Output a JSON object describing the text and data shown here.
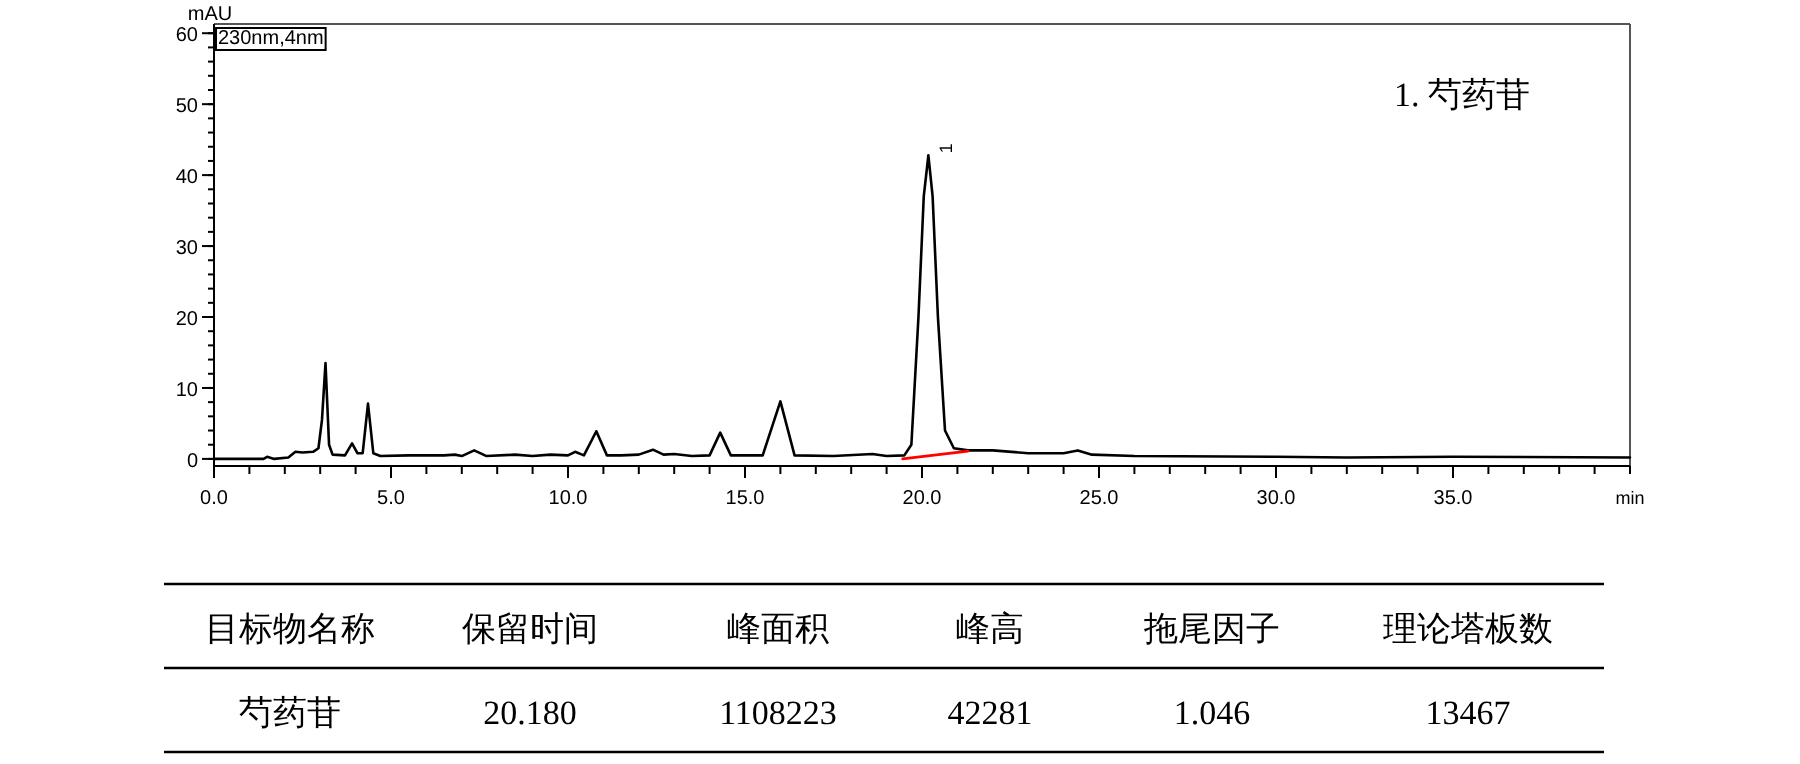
{
  "chart_data": {
    "type": "line",
    "xlabel": "min",
    "ylabel": "mAU",
    "xlim": [
      0,
      40
    ],
    "ylim": [
      -1,
      61.3
    ],
    "xticks": [
      {
        "value": 0,
        "label": "0.0"
      },
      {
        "value": 5,
        "label": "5.0"
      },
      {
        "value": 10,
        "label": "10.0"
      },
      {
        "value": 15,
        "label": "15.0"
      },
      {
        "value": 20,
        "label": "20.0"
      },
      {
        "value": 25,
        "label": "25.0"
      },
      {
        "value": 30,
        "label": "30.0"
      },
      {
        "value": 35,
        "label": "35.0"
      }
    ],
    "yticks": [
      0,
      10,
      20,
      30,
      40,
      50,
      60
    ],
    "series": [
      {
        "color": "#000000",
        "x": [
          0,
          1.4,
          1.5,
          1.7,
          2.1,
          2.3,
          2.5,
          2.8,
          2.95,
          3.05,
          3.15,
          3.25,
          3.35,
          3.7,
          3.9,
          4.05,
          4.2,
          4.35,
          4.5,
          4.7,
          5.5,
          6.5,
          6.8,
          7.0,
          7.35,
          7.7,
          8.5,
          9.0,
          9.5,
          10.0,
          10.2,
          10.45,
          10.8,
          11.1,
          11.5,
          12.0,
          12.4,
          12.7,
          13.0,
          13.5,
          14.0,
          14.3,
          14.6,
          15.5,
          16.0,
          16.4,
          17.5,
          18.6,
          19.0,
          19.5,
          19.7,
          19.9,
          20.05,
          20.18,
          20.3,
          20.45,
          20.65,
          20.9,
          21.3,
          22.0,
          23.0,
          24.0,
          24.4,
          24.8,
          26,
          30,
          32,
          35,
          40
        ],
        "values": [
          0,
          0,
          0.3,
          0,
          0.2,
          1.0,
          0.9,
          1.0,
          1.5,
          5.5,
          13.5,
          2,
          0.6,
          0.5,
          2.2,
          0.8,
          0.8,
          7.8,
          0.8,
          0.4,
          0.5,
          0.5,
          0.6,
          0.4,
          1.2,
          0.4,
          0.6,
          0.4,
          0.6,
          0.5,
          1.0,
          0.5,
          3.9,
          0.5,
          0.5,
          0.6,
          1.3,
          0.6,
          0.7,
          0.4,
          0.5,
          3.7,
          0.5,
          0.5,
          8.1,
          0.5,
          0.4,
          0.7,
          0.4,
          0.5,
          2,
          20,
          37,
          42.8,
          37,
          20,
          4,
          1.5,
          1.2,
          1.2,
          0.8,
          0.8,
          1.2,
          0.6,
          0.4,
          0.3,
          0.2,
          0.3,
          0.2
        ]
      },
      {
        "type": "line",
        "color": "#ff0000",
        "x": [
          19.45,
          21.3
        ],
        "values": [
          0,
          1.1
        ]
      }
    ],
    "annotations": [
      "230nm,4nm",
      {
        "text": "1",
        "x": 20.18,
        "y": 42.8
      },
      "1. 芍药苷",
      "目标物名称",
      "保留时间",
      "峰面积",
      "峰高",
      "拖尾因子",
      "理论塔板数",
      "芍药苷",
      "20.180",
      "1108223",
      "42281",
      "1.046",
      "13467"
    ]
  }
}
